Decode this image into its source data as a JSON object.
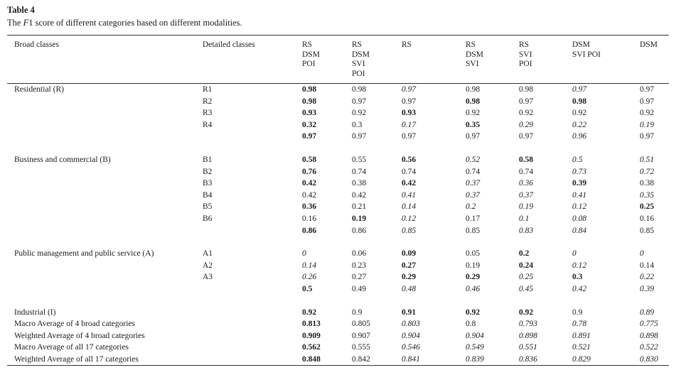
{
  "page": {
    "title": "Table 4",
    "caption": {
      "pre": "The ",
      "italic_term": "F",
      "post": "1 score of different categories based on different modalities."
    }
  },
  "table": {
    "headers": [
      {
        "lines": [
          "Broad classes"
        ]
      },
      {
        "lines": [
          "Detailed classes"
        ]
      },
      {
        "lines": [
          "RS",
          "DSM",
          "POI"
        ]
      },
      {
        "lines": [
          "RS",
          "DSM",
          "SVI",
          "POI"
        ]
      },
      {
        "lines": [
          "RS"
        ]
      },
      {
        "lines": [
          "RS",
          "DSM",
          "SVI"
        ]
      },
      {
        "lines": [
          "RS",
          "SVI",
          "POI"
        ]
      },
      {
        "lines": [
          "DSM",
          "SVI POI"
        ]
      },
      {
        "lines": [
          "DSM"
        ]
      }
    ],
    "style_legend": {
      "b": "bold",
      "i": "italic",
      "n": "normal"
    },
    "groups": [
      {
        "rows": [
          {
            "broad": "Residential (R)",
            "detailed": "R1",
            "values": [
              [
                "0.98",
                "b"
              ],
              [
                "0.98",
                "n"
              ],
              [
                "0.97",
                "i"
              ],
              [
                "0.98",
                "n"
              ],
              [
                "0.98",
                "n"
              ],
              [
                "0.97",
                "i"
              ],
              [
                "0.97",
                "n"
              ]
            ]
          },
          {
            "broad": "",
            "detailed": "R2",
            "values": [
              [
                "0.98",
                "b"
              ],
              [
                "0.97",
                "n"
              ],
              [
                "0.97",
                "n"
              ],
              [
                "0.98",
                "b"
              ],
              [
                "0.97",
                "n"
              ],
              [
                "0.98",
                "b"
              ],
              [
                "0.97",
                "n"
              ]
            ]
          },
          {
            "broad": "",
            "detailed": "R3",
            "values": [
              [
                "0.93",
                "b"
              ],
              [
                "0.92",
                "n"
              ],
              [
                "0.93",
                "b"
              ],
              [
                "0.92",
                "n"
              ],
              [
                "0.92",
                "n"
              ],
              [
                "0.92",
                "n"
              ],
              [
                "0.92",
                "n"
              ]
            ]
          },
          {
            "broad": "",
            "detailed": "R4",
            "values": [
              [
                "0.32",
                "b"
              ],
              [
                "0.3",
                "n"
              ],
              [
                "0.17",
                "i"
              ],
              [
                "0.35",
                "b"
              ],
              [
                "0.29",
                "i"
              ],
              [
                "0.22",
                "i"
              ],
              [
                "0.19",
                "i"
              ]
            ]
          },
          {
            "broad": "",
            "detailed": "",
            "values": [
              [
                "0.97",
                "b"
              ],
              [
                "0.97",
                "n"
              ],
              [
                "0.97",
                "n"
              ],
              [
                "0.97",
                "n"
              ],
              [
                "0.97",
                "n"
              ],
              [
                "0.96",
                "i"
              ],
              [
                "0.97",
                "n"
              ]
            ]
          }
        ]
      },
      {
        "rows": [
          {
            "broad": "Business and commercial (B)",
            "detailed": "B1",
            "values": [
              [
                "0.58",
                "b"
              ],
              [
                "0.55",
                "n"
              ],
              [
                "0.56",
                "b"
              ],
              [
                "0.52",
                "i"
              ],
              [
                "0.58",
                "b"
              ],
              [
                "0.5",
                "i"
              ],
              [
                "0.51",
                "i"
              ]
            ]
          },
          {
            "broad": "",
            "detailed": "B2",
            "values": [
              [
                "0.76",
                "b"
              ],
              [
                "0.74",
                "n"
              ],
              [
                "0.74",
                "n"
              ],
              [
                "0.74",
                "n"
              ],
              [
                "0.74",
                "n"
              ],
              [
                "0.73",
                "i"
              ],
              [
                "0.72",
                "i"
              ]
            ]
          },
          {
            "broad": "",
            "detailed": "B3",
            "values": [
              [
                "0.42",
                "b"
              ],
              [
                "0.38",
                "n"
              ],
              [
                "0.42",
                "b"
              ],
              [
                "0.37",
                "i"
              ],
              [
                "0.36",
                "i"
              ],
              [
                "0.39",
                "b"
              ],
              [
                "0.38",
                "n"
              ]
            ]
          },
          {
            "broad": "",
            "detailed": "B4",
            "values": [
              [
                "0.42",
                "n"
              ],
              [
                "0.42",
                "n"
              ],
              [
                "0.41",
                "i"
              ],
              [
                "0.37",
                "i"
              ],
              [
                "0.37",
                "i"
              ],
              [
                "0.41",
                "i"
              ],
              [
                "0.35",
                "i"
              ]
            ]
          },
          {
            "broad": "",
            "detailed": "B5",
            "values": [
              [
                "0.36",
                "b"
              ],
              [
                "0.21",
                "n"
              ],
              [
                "0.14",
                "i"
              ],
              [
                "0.2",
                "i"
              ],
              [
                "0.19",
                "i"
              ],
              [
                "0.12",
                "i"
              ],
              [
                "0.25",
                "b"
              ]
            ]
          },
          {
            "broad": "",
            "detailed": "B6",
            "values": [
              [
                "0.16",
                "n"
              ],
              [
                "0.19",
                "b"
              ],
              [
                "0.12",
                "i"
              ],
              [
                "0.17",
                "n"
              ],
              [
                "0.1",
                "i"
              ],
              [
                "0.08",
                "i"
              ],
              [
                "0.16",
                "n"
              ]
            ]
          },
          {
            "broad": "",
            "detailed": "",
            "values": [
              [
                "0.86",
                "b"
              ],
              [
                "0.86",
                "n"
              ],
              [
                "0.85",
                "i"
              ],
              [
                "0.85",
                "n"
              ],
              [
                "0.83",
                "i"
              ],
              [
                "0.84",
                "i"
              ],
              [
                "0.85",
                "n"
              ]
            ]
          }
        ]
      },
      {
        "rows": [
          {
            "broad": "Public management and public service (A)",
            "detailed": "A1",
            "values": [
              [
                "0",
                "i"
              ],
              [
                "0.06",
                "n"
              ],
              [
                "0.09",
                "b"
              ],
              [
                "0.05",
                "n"
              ],
              [
                "0.2",
                "b"
              ],
              [
                "0",
                "i"
              ],
              [
                "0",
                "i"
              ]
            ]
          },
          {
            "broad": "",
            "detailed": "A2",
            "values": [
              [
                "0.14",
                "i"
              ],
              [
                "0.23",
                "n"
              ],
              [
                "0.27",
                "b"
              ],
              [
                "0.19",
                "n"
              ],
              [
                "0.24",
                "b"
              ],
              [
                "0.12",
                "i"
              ],
              [
                "0.14",
                "n"
              ]
            ]
          },
          {
            "broad": "",
            "detailed": "A3",
            "values": [
              [
                "0.26",
                "i"
              ],
              [
                "0.27",
                "n"
              ],
              [
                "0.29",
                "b"
              ],
              [
                "0.29",
                "b"
              ],
              [
                "0.25",
                "i"
              ],
              [
                "0.3",
                "b"
              ],
              [
                "0.22",
                "i"
              ]
            ]
          },
          {
            "broad": "",
            "detailed": "",
            "values": [
              [
                "0.5",
                "b"
              ],
              [
                "0.49",
                "n"
              ],
              [
                "0.48",
                "i"
              ],
              [
                "0.46",
                "i"
              ],
              [
                "0.45",
                "i"
              ],
              [
                "0.42",
                "i"
              ],
              [
                "0.39",
                "i"
              ]
            ]
          }
        ]
      },
      {
        "rows": [
          {
            "broad": "Industrial (I)",
            "detailed": "",
            "values": [
              [
                "0.92",
                "b"
              ],
              [
                "0.9",
                "n"
              ],
              [
                "0.91",
                "b"
              ],
              [
                "0.92",
                "b"
              ],
              [
                "0.92",
                "b"
              ],
              [
                "0.9",
                "n"
              ],
              [
                "0.89",
                "i"
              ]
            ]
          },
          {
            "broad": "Macro Average of 4 broad categories",
            "detailed": "",
            "values": [
              [
                "0.813",
                "b"
              ],
              [
                "0.805",
                "n"
              ],
              [
                "0.803",
                "i"
              ],
              [
                "0.8",
                "n"
              ],
              [
                "0.793",
                "i"
              ],
              [
                "0.78",
                "i"
              ],
              [
                "0.775",
                "i"
              ]
            ]
          },
          {
            "broad": "Weighted Average of 4 broad categories",
            "detailed": "",
            "values": [
              [
                "0.909",
                "b"
              ],
              [
                "0.907",
                "n"
              ],
              [
                "0.904",
                "i"
              ],
              [
                "0.904",
                "i"
              ],
              [
                "0.898",
                "i"
              ],
              [
                "0.891",
                "i"
              ],
              [
                "0.898",
                "i"
              ]
            ]
          },
          {
            "broad": "Macro Average of all 17 categories",
            "detailed": "",
            "values": [
              [
                "0.562",
                "b"
              ],
              [
                "0.555",
                "n"
              ],
              [
                "0.546",
                "i"
              ],
              [
                "0.549",
                "i"
              ],
              [
                "0.551",
                "i"
              ],
              [
                "0.521",
                "i"
              ],
              [
                "0.522",
                "i"
              ]
            ]
          },
          {
            "broad": "Weighted Average of all 17 categories",
            "detailed": "",
            "values": [
              [
                "0.848",
                "b"
              ],
              [
                "0.842",
                "n"
              ],
              [
                "0.841",
                "i"
              ],
              [
                "0.839",
                "i"
              ],
              [
                "0.836",
                "i"
              ],
              [
                "0.829",
                "i"
              ],
              [
                "0.830",
                "i"
              ]
            ]
          }
        ]
      }
    ]
  }
}
